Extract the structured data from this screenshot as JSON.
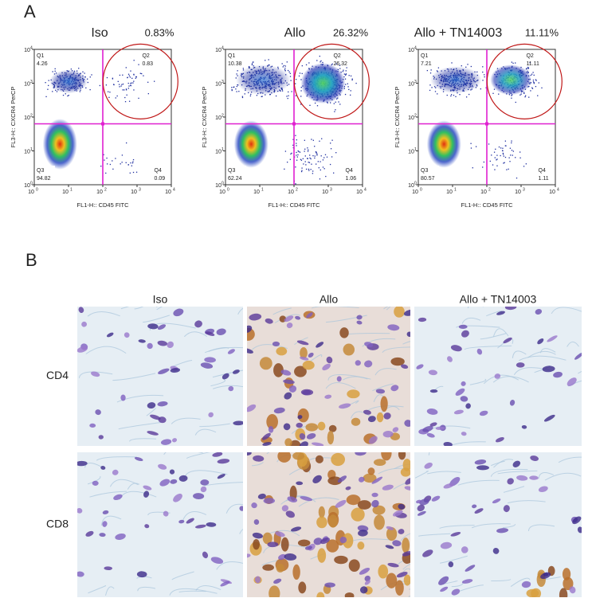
{
  "panel_a": {
    "label": "A",
    "y_axis_label": "FL3-H:: CXCR4 PerCP",
    "x_axis_label": "FL1-H:: CD45 FITC",
    "tick_labels": [
      {
        "base": "10",
        "exponent": "0"
      },
      {
        "base": "10",
        "exponent": "1"
      },
      {
        "base": "10",
        "exponent": "2"
      },
      {
        "base": "10",
        "exponent": "3"
      },
      {
        "base": "10",
        "exponent": "4"
      }
    ],
    "plots": [
      {
        "title": "Iso",
        "percent": "0.83%",
        "quadrants": [
          {
            "name": "Q1",
            "value": "4.26"
          },
          {
            "name": "Q2",
            "value": "0.83"
          },
          {
            "name": "Q3",
            "value": "94.82"
          },
          {
            "name": "Q4",
            "value": "0.09"
          }
        ]
      },
      {
        "title": "Allo",
        "percent": "26.32%",
        "quadrants": [
          {
            "name": "Q1",
            "value": "10.38"
          },
          {
            "name": "Q2",
            "value": "26.32"
          },
          {
            "name": "Q3",
            "value": "62.24"
          },
          {
            "name": "Q4",
            "value": "1.06"
          }
        ]
      },
      {
        "title": "Allo + TN14003",
        "percent": "11.11%",
        "quadrants": [
          {
            "name": "Q1",
            "value": "7.21"
          },
          {
            "name": "Q2",
            "value": "11.11"
          },
          {
            "name": "Q3",
            "value": "80.57"
          },
          {
            "name": "Q4",
            "value": "1.11"
          }
        ]
      }
    ]
  },
  "panel_b": {
    "label": "B",
    "columns": [
      "Iso",
      "Allo",
      "Allo + TN14003"
    ],
    "rows": [
      "CD4",
      "CD8"
    ]
  }
}
